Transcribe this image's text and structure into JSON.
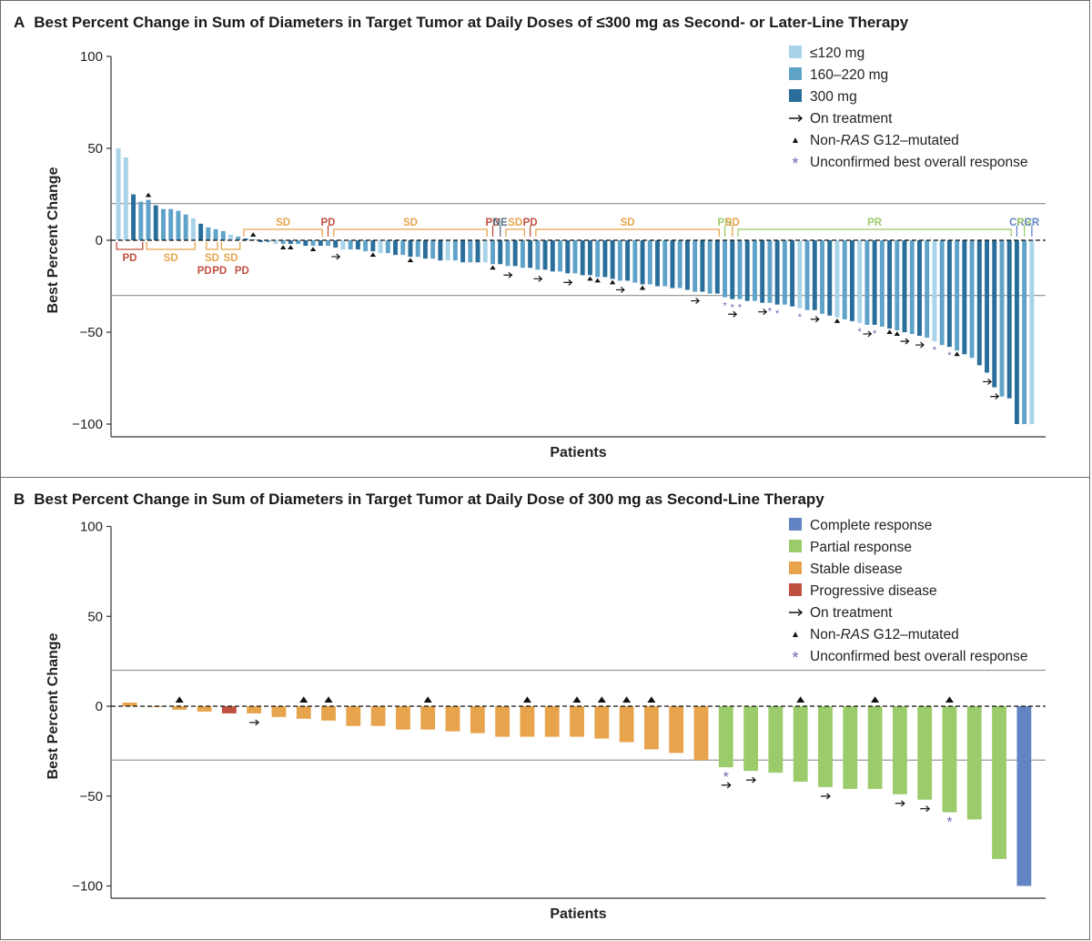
{
  "panels": {
    "a": {
      "letter": "A",
      "title": "Best Percent Change in Sum of Diameters in Target Tumor at Daily Doses of ≤300 mg as Second- or Later-Line Therapy"
    },
    "b": {
      "letter": "B",
      "title": "Best Percent Change in Sum of Diameters in Target Tumor at Daily Dose of 300 mg as Second-Line Therapy"
    }
  },
  "colors": {
    "dose_120": "#a9d3e8",
    "dose_160_220": "#5fa3c9",
    "dose_300": "#2a6f9b",
    "complete_response": "#6384c4",
    "partial_response": "#9ccb6b",
    "stable_disease": "#e7a44d",
    "progressive_disease": "#c0503f",
    "ne": "#5a6f84",
    "unconfirmed_star": "#7a5fb4",
    "reference_line": "#9a9a9a",
    "axis": "#333333"
  },
  "chart_data": [
    {
      "id": "A",
      "type": "bar",
      "title": "Best Percent Change in Sum of Diameters in Target Tumor at Daily Doses of ≤300 mg as Second- or Later-Line Therapy",
      "xlabel": "Patients",
      "ylabel": "Best Percent Change",
      "ylim": [
        -105,
        100
      ],
      "yticks": [
        100,
        50,
        0,
        -50,
        -100
      ],
      "reference_lines": [
        20,
        -30
      ],
      "legend_position": "top-right",
      "legend": [
        {
          "label": "≤120 mg",
          "kind": "swatch",
          "color_key": "dose_120"
        },
        {
          "label": "160–220 mg",
          "kind": "swatch",
          "color_key": "dose_160_220"
        },
        {
          "label": "300 mg",
          "kind": "swatch",
          "color_key": "dose_300"
        },
        {
          "label": "On treatment",
          "kind": "arrow"
        },
        {
          "label_pre": "Non-",
          "label_italic": "RAS",
          "label_post": " G12–mutated",
          "kind": "triangle"
        },
        {
          "label": "Unconfirmed best overall response",
          "kind": "star"
        }
      ],
      "series": [
        {
          "name": "≤120 mg",
          "color_key": "dose_120"
        },
        {
          "name": "160–220 mg",
          "color_key": "dose_160_220"
        },
        {
          "name": "300 mg",
          "color_key": "dose_300"
        }
      ],
      "patients": [
        {
          "v": 50,
          "d": 0
        },
        {
          "v": 45,
          "d": 0
        },
        {
          "v": 25,
          "d": 2
        },
        {
          "v": 21,
          "d": 1
        },
        {
          "v": 22,
          "d": 1,
          "tri": true
        },
        {
          "v": 19,
          "d": 2
        },
        {
          "v": 17,
          "d": 1
        },
        {
          "v": 17,
          "d": 1
        },
        {
          "v": 16,
          "d": 1
        },
        {
          "v": 14,
          "d": 1
        },
        {
          "v": 12,
          "d": 0
        },
        {
          "v": 9,
          "d": 2
        },
        {
          "v": 7,
          "d": 1
        },
        {
          "v": 6,
          "d": 1
        },
        {
          "v": 5,
          "d": 1
        },
        {
          "v": 3,
          "d": 0
        },
        {
          "v": 2,
          "d": 1
        },
        {
          "v": 1,
          "d": 2
        },
        {
          "v": 0.5,
          "d": 1,
          "tri": true
        },
        {
          "v": -1,
          "d": 2
        },
        {
          "v": -1,
          "d": 1
        },
        {
          "v": -2,
          "d": 0
        },
        {
          "v": -2,
          "d": 1,
          "tri": true
        },
        {
          "v": -2,
          "d": 2,
          "tri": true
        },
        {
          "v": -2,
          "d": 1
        },
        {
          "v": -3,
          "d": 2
        },
        {
          "v": -3,
          "d": 1,
          "tri": true
        },
        {
          "v": -3,
          "d": 2
        },
        {
          "v": -3,
          "d": 1
        },
        {
          "v": -4,
          "d": 2,
          "arr": true
        },
        {
          "v": -5,
          "d": 0
        },
        {
          "v": -5,
          "d": 1
        },
        {
          "v": -5,
          "d": 2
        },
        {
          "v": -6,
          "d": 1
        },
        {
          "v": -6,
          "d": 2,
          "tri": true
        },
        {
          "v": -7,
          "d": 0
        },
        {
          "v": -7,
          "d": 1
        },
        {
          "v": -8,
          "d": 2
        },
        {
          "v": -8,
          "d": 1
        },
        {
          "v": -9,
          "d": 2,
          "tri": true
        },
        {
          "v": -9,
          "d": 1
        },
        {
          "v": -10,
          "d": 2
        },
        {
          "v": -10,
          "d": 1
        },
        {
          "v": -11,
          "d": 2
        },
        {
          "v": -11,
          "d": 0
        },
        {
          "v": -11,
          "d": 1
        },
        {
          "v": -12,
          "d": 2
        },
        {
          "v": -12,
          "d": 1
        },
        {
          "v": -12,
          "d": 2
        },
        {
          "v": -12,
          "d": 0
        },
        {
          "v": -13,
          "d": 1,
          "tri": true
        },
        {
          "v": -13,
          "d": 2
        },
        {
          "v": -14,
          "d": 1,
          "arr": true
        },
        {
          "v": -14,
          "d": 2
        },
        {
          "v": -15,
          "d": 1
        },
        {
          "v": -15,
          "d": 2
        },
        {
          "v": -16,
          "d": 1,
          "arr": true
        },
        {
          "v": -16,
          "d": 2
        },
        {
          "v": -17,
          "d": 2
        },
        {
          "v": -17,
          "d": 1
        },
        {
          "v": -18,
          "d": 2,
          "arr": true
        },
        {
          "v": -18,
          "d": 1
        },
        {
          "v": -19,
          "d": 2
        },
        {
          "v": -19,
          "d": 2,
          "tri": true
        },
        {
          "v": -20,
          "d": 1,
          "tri": true
        },
        {
          "v": -20,
          "d": 2
        },
        {
          "v": -21,
          "d": 2,
          "tri": true
        },
        {
          "v": -22,
          "d": 1,
          "arr": true
        },
        {
          "v": -22,
          "d": 2
        },
        {
          "v": -23,
          "d": 1
        },
        {
          "v": -24,
          "d": 2,
          "tri": true
        },
        {
          "v": -24,
          "d": 1
        },
        {
          "v": -25,
          "d": 2
        },
        {
          "v": -25,
          "d": 1
        },
        {
          "v": -26,
          "d": 2
        },
        {
          "v": -26,
          "d": 1
        },
        {
          "v": -27,
          "d": 2
        },
        {
          "v": -28,
          "d": 1,
          "arr": true
        },
        {
          "v": -28,
          "d": 2
        },
        {
          "v": -29,
          "d": 1
        },
        {
          "v": -29,
          "d": 2
        },
        {
          "v": -31,
          "d": 1,
          "star": true
        },
        {
          "v": -32,
          "d": 2,
          "star": true,
          "arr": true
        },
        {
          "v": -32,
          "d": 1,
          "star": true
        },
        {
          "v": -33,
          "d": 2
        },
        {
          "v": -33,
          "d": 1
        },
        {
          "v": -34,
          "d": 2,
          "arr": true
        },
        {
          "v": -34,
          "d": 1,
          "star": true
        },
        {
          "v": -35,
          "d": 2,
          "star": true
        },
        {
          "v": -35,
          "d": 1
        },
        {
          "v": -36,
          "d": 2
        },
        {
          "v": -37,
          "d": 0,
          "star": true
        },
        {
          "v": -38,
          "d": 1
        },
        {
          "v": -38,
          "d": 2,
          "arr": true
        },
        {
          "v": -40,
          "d": 1
        },
        {
          "v": -41,
          "d": 2
        },
        {
          "v": -42,
          "d": 0,
          "tri": true
        },
        {
          "v": -43,
          "d": 1
        },
        {
          "v": -44,
          "d": 2
        },
        {
          "v": -45,
          "d": 0,
          "star": true
        },
        {
          "v": -46,
          "d": 1,
          "arr": true
        },
        {
          "v": -46,
          "d": 2,
          "star": true
        },
        {
          "v": -47,
          "d": 1
        },
        {
          "v": -48,
          "d": 2,
          "tri": true
        },
        {
          "v": -49,
          "d": 1,
          "tri": true
        },
        {
          "v": -50,
          "d": 2,
          "arr": true
        },
        {
          "v": -51,
          "d": 1
        },
        {
          "v": -52,
          "d": 2,
          "arr": true
        },
        {
          "v": -53,
          "d": 1
        },
        {
          "v": -55,
          "d": 0,
          "star": true
        },
        {
          "v": -57,
          "d": 1
        },
        {
          "v": -58,
          "d": 2,
          "star": true
        },
        {
          "v": -60,
          "d": 1,
          "tri": true
        },
        {
          "v": -62,
          "d": 2
        },
        {
          "v": -64,
          "d": 1
        },
        {
          "v": -68,
          "d": 2
        },
        {
          "v": -72,
          "d": 2,
          "arr": true
        },
        {
          "v": -80,
          "d": 2,
          "arr": true
        },
        {
          "v": -85,
          "d": 1
        },
        {
          "v": -86,
          "d": 2
        },
        {
          "v": -100,
          "d": 2
        },
        {
          "v": -100,
          "d": 1
        },
        {
          "v": -100,
          "d": 0
        }
      ],
      "response_groups": [
        {
          "label": "PD",
          "kind": "PD",
          "side": "below",
          "from": 0,
          "to": 3
        },
        {
          "label": "SD",
          "kind": "SD",
          "side": "below",
          "from": 4,
          "to": 10
        },
        {
          "label": "PD",
          "kind": "PD",
          "side": "below",
          "from": 11,
          "to": 12,
          "bracket": false
        },
        {
          "label": "SD",
          "kind": "SD",
          "side": "below",
          "from": 12,
          "to": 13
        },
        {
          "label": "PD",
          "kind": "PD",
          "side": "below",
          "from": 13,
          "to": 14,
          "bracket": false
        },
        {
          "label": "SD",
          "kind": "SD",
          "side": "below",
          "from": 14,
          "to": 16
        },
        {
          "label": "PD",
          "kind": "PD",
          "side": "below",
          "from": 16,
          "to": 17,
          "bracket": false
        },
        {
          "label": "SD",
          "kind": "SD",
          "side": "above",
          "from": 17,
          "to": 27
        },
        {
          "label": "PD",
          "kind": "PD",
          "side": "above",
          "from": 28,
          "to": 28
        },
        {
          "label": "SD",
          "kind": "SD",
          "side": "above",
          "from": 29,
          "to": 49
        },
        {
          "label": "PD",
          "kind": "PD",
          "side": "above",
          "from": 50,
          "to": 50
        },
        {
          "label": "NE",
          "kind": "NE",
          "side": "above",
          "from": 51,
          "to": 51
        },
        {
          "label": "SD",
          "kind": "SD",
          "side": "above",
          "from": 52,
          "to": 54
        },
        {
          "label": "PD",
          "kind": "PD",
          "side": "above",
          "from": 55,
          "to": 55
        },
        {
          "label": "SD",
          "kind": "SD",
          "side": "above",
          "from": 56,
          "to": 80
        },
        {
          "label": "PR",
          "kind": "PR",
          "side": "above",
          "from": 81,
          "to": 81
        },
        {
          "label": "SD",
          "kind": "SD",
          "side": "above",
          "from": 82,
          "to": 82
        },
        {
          "label": "PR",
          "kind": "PR",
          "side": "above",
          "from": 83,
          "to": 119
        },
        {
          "label": "CR",
          "kind": "CR",
          "side": "above",
          "from": 120,
          "to": 120
        },
        {
          "label": "PR",
          "kind": "PR",
          "side": "above",
          "from": 121,
          "to": 121
        },
        {
          "label": "CR",
          "kind": "CR",
          "side": "above",
          "from": 122,
          "to": 122
        }
      ]
    },
    {
      "id": "B",
      "type": "bar",
      "title": "Best Percent Change in Sum of Diameters in Target Tumor at Daily Dose of 300 mg as Second-Line Therapy",
      "xlabel": "Patients",
      "ylabel": "Best Percent Change",
      "ylim": [
        -105,
        100
      ],
      "yticks": [
        100,
        50,
        0,
        -50,
        -100
      ],
      "reference_lines": [
        20,
        -30
      ],
      "legend_position": "top-right",
      "legend": [
        {
          "label": "Complete response",
          "kind": "swatch",
          "color_key": "complete_response"
        },
        {
          "label": "Partial response",
          "kind": "swatch",
          "color_key": "partial_response"
        },
        {
          "label": "Stable disease",
          "kind": "swatch",
          "color_key": "stable_disease"
        },
        {
          "label": "Progressive disease",
          "kind": "swatch",
          "color_key": "progressive_disease"
        },
        {
          "label": "On treatment",
          "kind": "arrow"
        },
        {
          "label_pre": "Non-",
          "label_italic": "RAS",
          "label_post": " G12–mutated",
          "kind": "triangle"
        },
        {
          "label": "Unconfirmed best overall response",
          "kind": "star"
        }
      ],
      "series": [
        {
          "name": "Complete response",
          "color_key": "complete_response"
        },
        {
          "name": "Partial response",
          "color_key": "partial_response"
        },
        {
          "name": "Stable disease",
          "color_key": "stable_disease"
        },
        {
          "name": "Progressive disease",
          "color_key": "progressive_disease"
        }
      ],
      "patients": [
        {
          "v": 2,
          "r": "SD"
        },
        {
          "v": 0,
          "r": "SD"
        },
        {
          "v": -2,
          "r": "SD",
          "tri": true
        },
        {
          "v": -3,
          "r": "SD"
        },
        {
          "v": -4,
          "r": "PD"
        },
        {
          "v": -4,
          "r": "SD",
          "arr": true
        },
        {
          "v": -6,
          "r": "SD"
        },
        {
          "v": -7,
          "r": "SD",
          "tri": true
        },
        {
          "v": -8,
          "r": "SD",
          "tri": true
        },
        {
          "v": -11,
          "r": "SD"
        },
        {
          "v": -11,
          "r": "SD"
        },
        {
          "v": -13,
          "r": "SD"
        },
        {
          "v": -13,
          "r": "SD",
          "tri": true
        },
        {
          "v": -14,
          "r": "SD"
        },
        {
          "v": -15,
          "r": "SD"
        },
        {
          "v": -17,
          "r": "SD"
        },
        {
          "v": -17,
          "r": "SD",
          "tri": true
        },
        {
          "v": -17,
          "r": "SD"
        },
        {
          "v": -17,
          "r": "SD",
          "tri": true
        },
        {
          "v": -18,
          "r": "SD",
          "tri": true
        },
        {
          "v": -20,
          "r": "SD",
          "tri": true
        },
        {
          "v": -24,
          "r": "SD",
          "tri": true
        },
        {
          "v": -26,
          "r": "SD"
        },
        {
          "v": -30,
          "r": "SD"
        },
        {
          "v": -34,
          "r": "PR",
          "star": true,
          "arr": true
        },
        {
          "v": -36,
          "r": "PR",
          "arr": true
        },
        {
          "v": -37,
          "r": "PR"
        },
        {
          "v": -42,
          "r": "PR",
          "tri": true
        },
        {
          "v": -45,
          "r": "PR",
          "arr": true
        },
        {
          "v": -46,
          "r": "PR"
        },
        {
          "v": -46,
          "r": "PR",
          "tri": true
        },
        {
          "v": -49,
          "r": "PR",
          "arr": true
        },
        {
          "v": -52,
          "r": "PR",
          "arr": true
        },
        {
          "v": -59,
          "r": "PR",
          "star": true,
          "tri": true
        },
        {
          "v": -63,
          "r": "PR"
        },
        {
          "v": -85,
          "r": "PR"
        },
        {
          "v": -100,
          "r": "CR"
        }
      ]
    }
  ]
}
